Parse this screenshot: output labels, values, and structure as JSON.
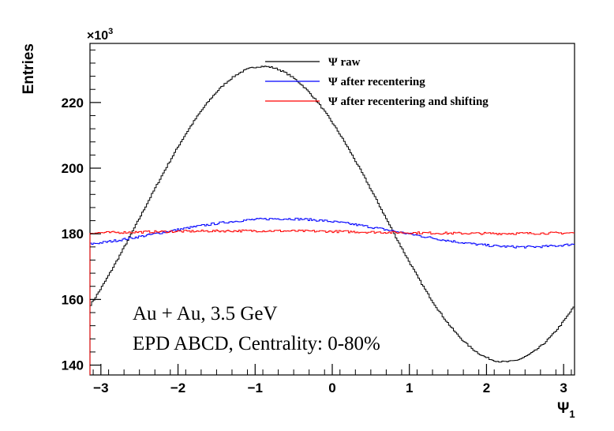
{
  "chart_data": {
    "type": "histogram-step",
    "ylabel": "Entries",
    "xlabel": "Ψ",
    "xlabel_subscript": "1",
    "y_multiplier": "×10",
    "y_multiplier_exp": "3",
    "xlim": [
      -3.1416,
      3.1416
    ],
    "ylim": [
      137,
      238
    ],
    "x_ticks": [
      -3,
      -2,
      -1,
      0,
      1,
      2,
      3
    ],
    "x_tick_labels": [
      "−3",
      "−2",
      "−1",
      "0",
      "1",
      "2",
      "3"
    ],
    "y_ticks": [
      140,
      160,
      180,
      200,
      220
    ],
    "y_tick_labels": [
      "140",
      "160",
      "180",
      "200",
      "220"
    ],
    "bins": 300,
    "legend": [
      {
        "label": "Ψ raw",
        "color": "#000000"
      },
      {
        "label": "Ψ after recentering",
        "color": "#0000ff"
      },
      {
        "label": "Ψ after recentering and shifting",
        "color": "#ff0000"
      }
    ],
    "series": [
      {
        "name": "Ψ raw",
        "color": "#000000",
        "model": "cosine",
        "params": {
          "mean": 186,
          "amplitude": 45,
          "peak_x": -0.9
        }
      },
      {
        "name": "Ψ after recentering",
        "color": "#0000ff",
        "model": "cosine",
        "params": {
          "mean": 180.3,
          "amplitude": 4.3,
          "peak_x": -0.65
        }
      },
      {
        "name": "Ψ after recentering and shifting",
        "color": "#ff0000",
        "model": "cosine",
        "params": {
          "mean": 180.5,
          "amplitude": 0.4,
          "peak_x": -1.0
        }
      }
    ],
    "annotations": [
      "Au + Au, 3.5 GeV",
      "EPD ABCD, Centrality: 0-80%"
    ],
    "legend_position": "top-right",
    "grid": false
  }
}
